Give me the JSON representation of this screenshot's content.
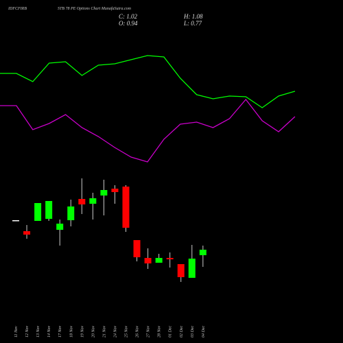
{
  "header": {
    "symbol": "IDFCFIRB",
    "subtitle": "STB 78  PE Options  Chart  MunafaSutra.com",
    "close": "C: 1.02",
    "open": "O: 0.94",
    "high": "H: 1.08",
    "low": "L: 0.77"
  },
  "chart_data": [
    {
      "type": "candlestick",
      "categories": [
        "11 Nov",
        "12 Nov",
        "13 Nov",
        "14 Nov",
        "17 Nov",
        "18 Nov",
        "19 Nov",
        "20 Nov",
        "21 Nov",
        "24 Nov",
        "25 Nov",
        "26 Nov",
        "27 Nov",
        "28 Nov",
        "01 Dec",
        "02 Dec",
        "03 Dec",
        "04 Dec"
      ],
      "open": [
        1.45,
        1.29,
        1.44,
        1.47,
        1.31,
        1.45,
        1.76,
        1.69,
        1.81,
        1.91,
        1.94,
        1.16,
        0.9,
        0.83,
        0.9,
        0.81,
        0.61,
        0.94
      ],
      "high": [
        1.45,
        1.38,
        1.7,
        1.73,
        1.46,
        1.75,
        2.06,
        1.85,
        2.04,
        1.96,
        1.96,
        1.16,
        1.04,
        0.96,
        0.98,
        0.81,
        1.09,
        1.08
      ],
      "low": [
        1.45,
        1.18,
        1.44,
        1.44,
        1.08,
        1.36,
        1.54,
        1.46,
        1.52,
        1.69,
        1.28,
        0.85,
        0.74,
        0.83,
        0.76,
        0.55,
        0.61,
        0.77
      ],
      "close": [
        1.45,
        1.24,
        1.7,
        1.73,
        1.4,
        1.65,
        1.68,
        1.77,
        1.89,
        1.86,
        1.34,
        0.91,
        0.82,
        0.9,
        0.88,
        0.62,
        0.89,
        1.02
      ],
      "up_color": "#00ff00",
      "down_color": "#ff0000",
      "flat_color": "#ffffff",
      "ylim": [
        0.5,
        2.1
      ]
    },
    {
      "type": "line",
      "x": [
        0,
        1,
        2,
        3,
        4,
        5,
        6,
        7,
        8,
        9,
        10,
        11,
        12,
        13,
        14,
        15,
        16,
        17,
        18
      ],
      "xlim": [
        0,
        18
      ],
      "ylim": [
        0,
        250
      ],
      "series": [
        {
          "color": "#00ff00",
          "values": [
            143,
            143,
            131,
            158,
            160,
            140,
            155,
            157,
            163,
            169,
            167,
            136,
            112,
            106,
            110,
            109,
            93,
            110,
            117
          ]
        },
        {
          "color": "#cc00cc",
          "values": [
            96,
            96,
            61,
            70,
            83,
            64,
            51,
            35,
            21,
            14,
            47,
            69,
            72,
            64,
            77,
            105,
            74,
            58,
            80
          ]
        }
      ]
    }
  ]
}
